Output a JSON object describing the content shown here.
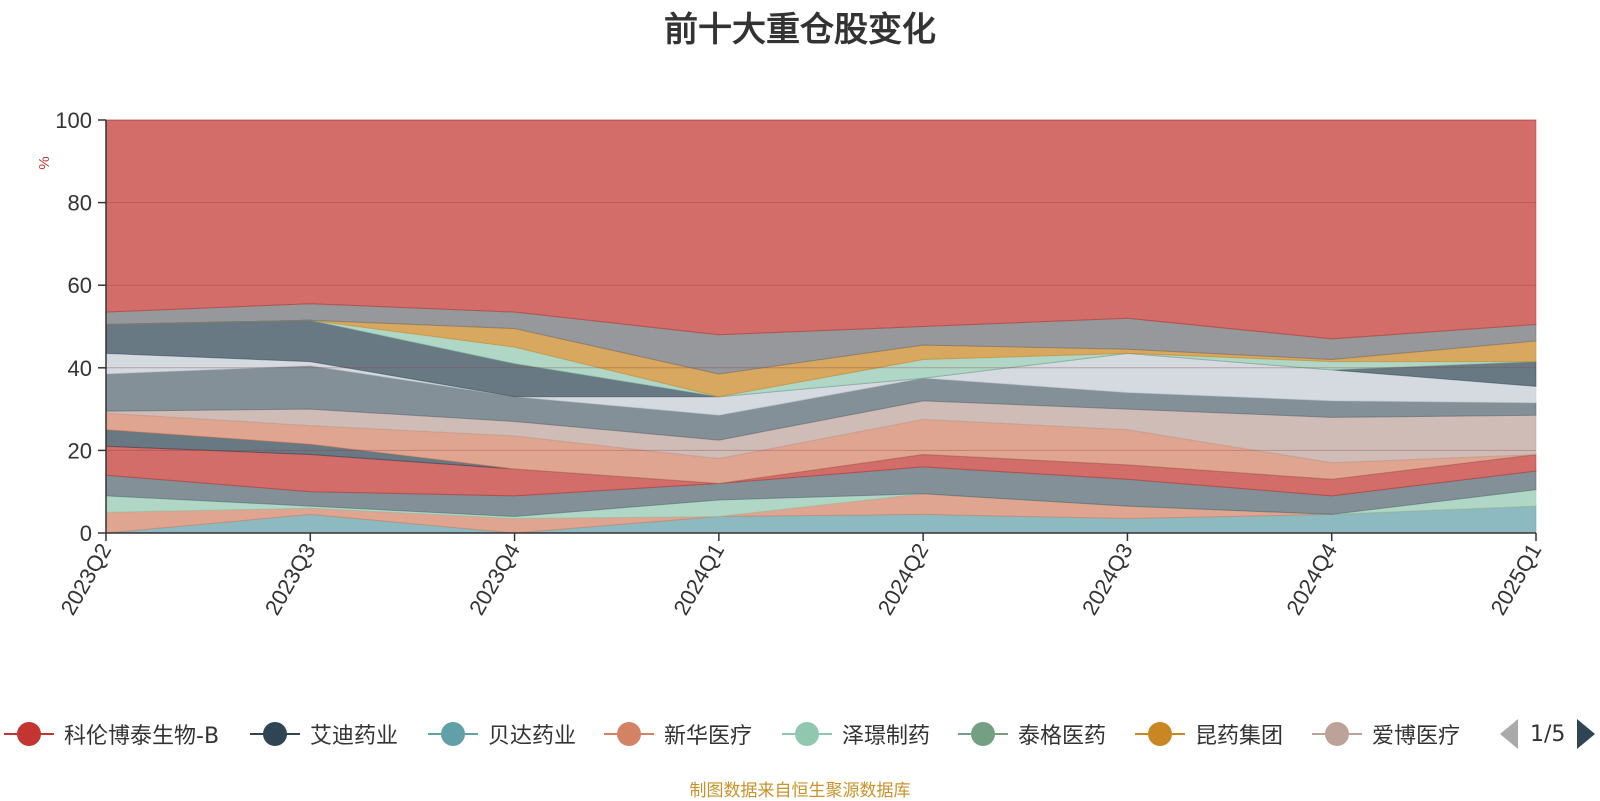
{
  "title": "前十大重仓股变化",
  "source_note": "制图数据来自恒生聚源数据库",
  "legend": {
    "items": [
      {
        "label": "科伦博泰生物-B",
        "color": "#c23531"
      },
      {
        "label": "艾迪药业",
        "color": "#2f4554"
      },
      {
        "label": "贝达药业",
        "color": "#61a0a8"
      },
      {
        "label": "新华医疗",
        "color": "#d48265"
      },
      {
        "label": "泽璟制药",
        "color": "#91c7ae"
      },
      {
        "label": "泰格医药",
        "color": "#749f83"
      },
      {
        "label": "昆药集团",
        "color": "#ca8622"
      },
      {
        "label": "爱博医疗",
        "color": "#bda29a"
      }
    ],
    "page_text": "1/5"
  },
  "chart_data": {
    "type": "area",
    "title": "前十大重仓股变化",
    "ylabel": "%",
    "ylim": [
      0,
      100
    ],
    "yticks": [
      0,
      20,
      40,
      60,
      80,
      100
    ],
    "grid": true,
    "categories": [
      "2023Q2",
      "2023Q3",
      "2023Q4",
      "2024Q1",
      "2024Q2",
      "2024Q3",
      "2024Q4",
      "2025Q1"
    ],
    "layers": [
      {
        "color": "#61a0a8",
        "values": [
          0,
          4.5,
          0,
          4,
          4.5,
          3.5,
          4.5,
          6.5
        ]
      },
      {
        "color": "#d48265",
        "values": [
          5,
          6,
          3.5,
          4,
          9.5,
          6.5,
          4.5,
          6.5
        ]
      },
      {
        "color": "#91c7ae",
        "values": [
          9,
          6.5,
          4,
          8,
          9.5,
          6.5,
          4.5,
          10.5
        ]
      },
      {
        "color": "#546570",
        "values": [
          14,
          10,
          9,
          12,
          16,
          13,
          9,
          15
        ]
      },
      {
        "color": "#c23531",
        "values": [
          21,
          19,
          15.5,
          12,
          19,
          16.5,
          13,
          19
        ]
      },
      {
        "color": "#2f4554",
        "values": [
          25,
          21.5,
          15.5,
          12,
          19,
          16.5,
          13,
          19
        ]
      },
      {
        "color": "#d48265",
        "values": [
          29,
          26,
          23.5,
          18,
          27.5,
          25,
          17,
          19
        ]
      },
      {
        "color": "#bda29a",
        "values": [
          29.5,
          30,
          27,
          22.5,
          32,
          30,
          28,
          28.5
        ]
      },
      {
        "color": "#546570",
        "values": [
          38.5,
          40.5,
          33,
          28.5,
          37.5,
          34,
          32,
          31.5
        ]
      },
      {
        "color": "#c4ccd3",
        "values": [
          43.5,
          41.5,
          33,
          33,
          37.5,
          43.5,
          39.5,
          35.5
        ]
      },
      {
        "color": "#2f4554",
        "values": [
          50.5,
          51.5,
          41,
          33,
          37.5,
          43.5,
          39.5,
          41.5
        ]
      },
      {
        "color": "#91c7ae",
        "values": [
          50.5,
          51.5,
          45,
          33,
          42,
          43.5,
          41.5,
          41.5
        ]
      },
      {
        "color": "#ca8622",
        "values": [
          50.5,
          51.5,
          49.5,
          38.5,
          45.5,
          44.5,
          42,
          46.5
        ]
      },
      {
        "color": "#6e7074",
        "values": [
          53.5,
          55.5,
          53.5,
          48,
          50,
          52,
          47,
          50.5
        ]
      },
      {
        "color": "#c23531",
        "values": [
          100,
          100,
          100,
          100,
          100,
          100,
          100,
          100
        ]
      }
    ]
  }
}
